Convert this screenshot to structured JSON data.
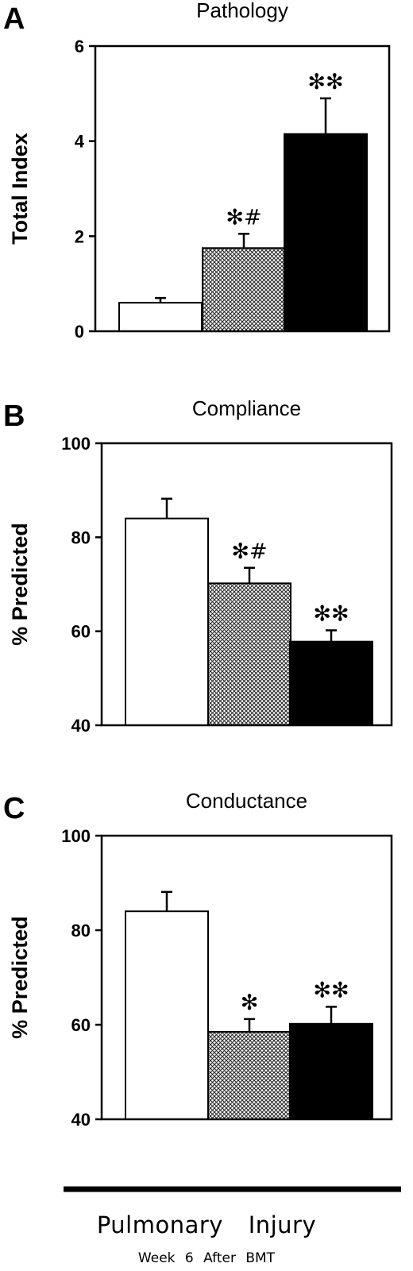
{
  "chart_data": [
    {
      "panel_label": "A",
      "title": "Pathology",
      "type": "bar",
      "ylabel": "Total Index",
      "ylim": [
        0,
        6
      ],
      "yticks": [
        0,
        2,
        4,
        6
      ],
      "grid": false,
      "values": [
        0.6,
        1.75,
        4.15
      ],
      "errors": [
        0.1,
        0.3,
        0.75
      ],
      "annotations": [
        "",
        "✻#",
        "✻✻"
      ]
    },
    {
      "panel_label": "B",
      "title": "Compliance",
      "type": "bar",
      "ylabel": "% Predicted",
      "ylim": [
        40,
        100
      ],
      "yticks": [
        40,
        60,
        80,
        100
      ],
      "grid": false,
      "values": [
        84,
        70.2,
        57.8
      ],
      "errors": [
        4.2,
        3.3,
        2.4
      ],
      "annotations": [
        "",
        "✻#",
        "✻✻"
      ]
    },
    {
      "panel_label": "C",
      "title": "Conductance",
      "type": "bar",
      "ylabel": "% Predicted",
      "ylim": [
        40,
        100
      ],
      "yticks": [
        40,
        60,
        80,
        100
      ],
      "grid": false,
      "values": [
        84,
        58.5,
        60.2
      ],
      "errors": [
        4.1,
        2.7,
        3.6
      ],
      "annotations": [
        "",
        "✻",
        "✻✻"
      ]
    }
  ],
  "bar_styles": [
    "#ffffff",
    "crosshatch",
    "#000000"
  ],
  "footer": {
    "title": "Pulmonary Injury",
    "subtitle": "Week 6 After BMT"
  }
}
